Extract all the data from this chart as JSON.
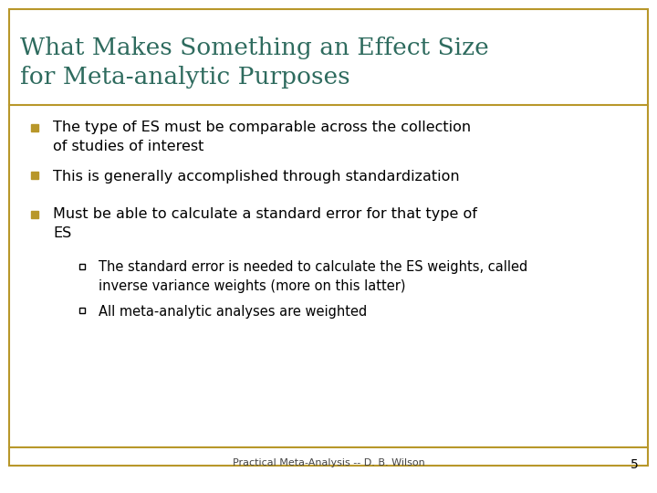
{
  "title_line1": "What Makes Something an Effect Size",
  "title_line2": "for Meta-analytic Purposes",
  "title_color": "#2E6B5E",
  "background_color": "#FFFFFF",
  "border_color": "#B8972A",
  "bullet_color": "#B8972A",
  "text_color": "#000000",
  "footer_text": "Practical Meta-Analysis -- D. B. Wilson",
  "footer_page": "5",
  "bullets": [
    "The type of ES must be comparable across the collection\nof studies of interest",
    "This is generally accomplished through standardization",
    "Must be able to calculate a standard error for that type of\nES"
  ],
  "sub_bullets": [
    "The standard error is needed to calculate the ES weights, called\ninverse variance weights (more on this latter)",
    "All meta-analytic analyses are weighted"
  ],
  "fig_width": 7.2,
  "fig_height": 5.4,
  "dpi": 100
}
